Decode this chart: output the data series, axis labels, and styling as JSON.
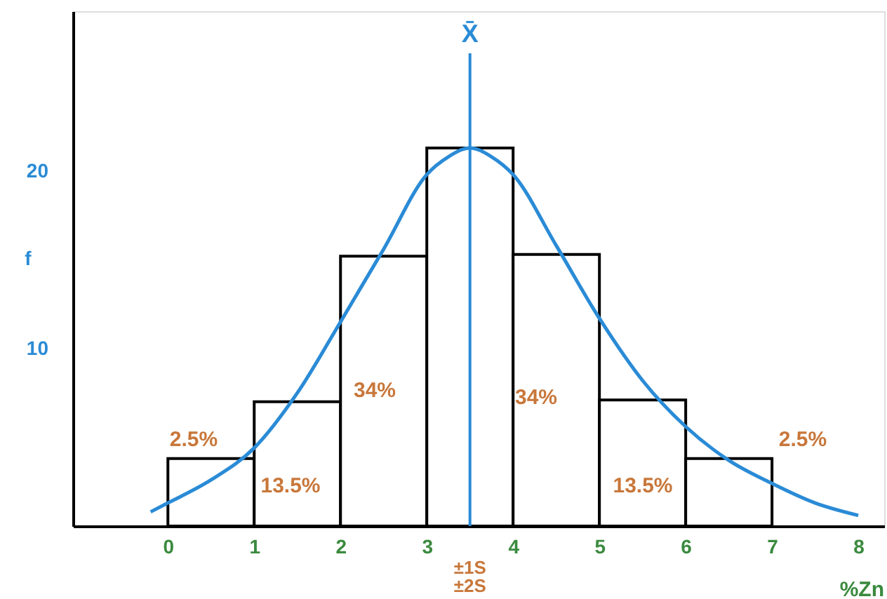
{
  "chart_data": {
    "type": "histogram",
    "xlabel": "%Zn",
    "ylabel": "f",
    "series": [
      {
        "color": "#000000",
        "bins": [
          0,
          1,
          2,
          3,
          4,
          5,
          6,
          7
        ],
        "values": [
          3.8,
          7,
          15.2,
          21.3,
          15.3,
          7.1,
          3.8
        ]
      },
      {
        "type": "line",
        "color": "#2a8bd6",
        "x": [
          -0.2,
          0,
          0.5,
          1,
          1.5,
          2,
          2.5,
          3,
          3.25,
          3.5,
          3.75,
          4,
          4.5,
          5,
          5.5,
          6,
          6.5,
          7,
          7.5,
          8
        ],
        "values": [
          0.8,
          1.3,
          2.6,
          4.4,
          7.5,
          11.5,
          15.6,
          19.8,
          20.8,
          21.3,
          20.8,
          19.8,
          15.8,
          11.7,
          8.2,
          5.6,
          3.7,
          2.4,
          1.3,
          0.6
        ]
      }
    ],
    "xlim": [
      -1.1,
      8.3
    ],
    "ylim": [
      0,
      29
    ],
    "xticks": [
      0,
      1,
      2,
      3,
      4,
      5,
      6,
      7,
      8
    ],
    "yticks": [
      10,
      20
    ],
    "ref_lines": [
      {
        "axis": "x",
        "value": 3.5,
        "label": "X̄",
        "color": "#2a8bd6"
      }
    ],
    "annotations": [
      "2.5%",
      "13.5%",
      "34%",
      "34%",
      "13.5%",
      "2.5%",
      "±1S",
      "±2S"
    ],
    "grid": false
  }
}
